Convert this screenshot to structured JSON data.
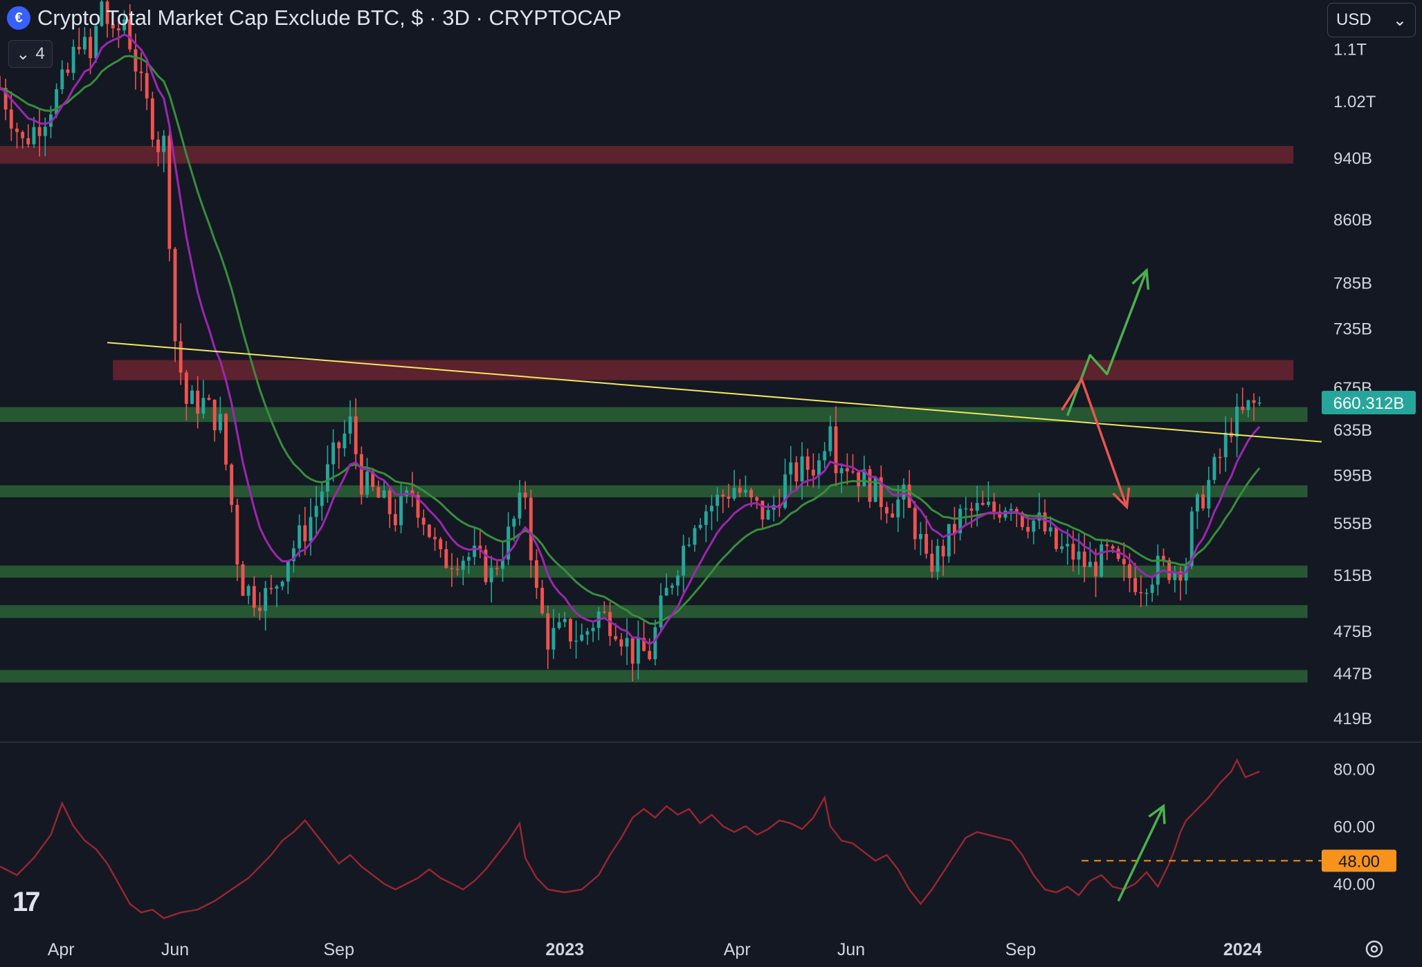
{
  "header": {
    "title": "Crypto Total Market Cap Exclude BTC, $ · 3D · CRYPTOCAP",
    "collapse_count": "4",
    "currency": "USD",
    "logo_icon": "cryptocap-logo-icon"
  },
  "colors": {
    "background": "#141823",
    "up": "#26a69a",
    "down": "#ef5350",
    "ema_fast": "#9c27b0",
    "ema_slow": "#388e3c",
    "trendline": "#f2e85c",
    "support_zone": "#2e6b3a",
    "resistance_zone": "#7a2733",
    "rsi": "#9b2630",
    "arrow_up": "#4caf50",
    "arrow_down": "#ef5350",
    "last_price_bg": "#26a69a",
    "rsi_level_bg": "#f7931a"
  },
  "chart_data": {
    "type": "candlestick",
    "title": "Crypto Total Market Cap Exclude BTC, $ · 3D · CRYPTOCAP",
    "price_axis": {
      "scale": "log",
      "ticks": [
        "1.1T",
        "1.02T",
        "940B",
        "860B",
        "785B",
        "735B",
        "675B",
        "635B",
        "595B",
        "555B",
        "515B",
        "475B",
        "447B",
        "419B"
      ],
      "tick_values": [
        1100,
        1020,
        940,
        860,
        785,
        735,
        675,
        635,
        595,
        555,
        515,
        475,
        447,
        419
      ],
      "range": [
        405,
        1180
      ]
    },
    "time_axis": {
      "ticks": [
        "Apr",
        "Jun",
        "Sep",
        "2023",
        "Apr",
        "Jun",
        "Sep",
        "2024"
      ],
      "bold": [
        false,
        false,
        false,
        true,
        false,
        false,
        false,
        true
      ],
      "tick_times": [
        0.08,
        2.1,
        5.0,
        9.0,
        12.05,
        14.07,
        17.07,
        21.0
      ],
      "range": [
        -1.0,
        22.4
      ],
      "unit": "months since Jan 2022"
    },
    "last_price": "660.312B",
    "last_price_value": 660.312,
    "resistance_zones": [
      [
        932,
        956
      ],
      [
        682,
        702
      ]
    ],
    "support_zones": [
      [
        642,
        656
      ],
      [
        576,
        586
      ],
      [
        513,
        522
      ],
      [
        484,
        493
      ],
      [
        441,
        449
      ]
    ],
    "trendline": {
      "from": [
        0.9,
        720
      ],
      "to": [
        22.4,
        624
      ]
    },
    "scenario_up": [
      [
        17.9,
        648
      ],
      [
        18.3,
        707
      ],
      [
        18.6,
        688
      ],
      [
        19.3,
        799
      ]
    ],
    "scenario_down": [
      [
        17.8,
        653
      ],
      [
        18.15,
        683
      ],
      [
        18.95,
        568
      ]
    ],
    "price_path": [
      [
        -1.0,
        1040
      ],
      [
        -0.6,
        960
      ],
      [
        -0.2,
        1000
      ],
      [
        0.2,
        1060
      ],
      [
        0.4,
        1120
      ],
      [
        0.6,
        1080
      ],
      [
        0.8,
        1180
      ],
      [
        1.0,
        1110
      ],
      [
        1.2,
        1150
      ],
      [
        1.5,
        1040
      ],
      [
        1.8,
        960
      ],
      [
        1.95,
        960
      ],
      [
        2.05,
        740
      ],
      [
        2.3,
        660
      ],
      [
        2.6,
        660
      ],
      [
        2.9,
        640
      ],
      [
        3.1,
        570
      ],
      [
        3.25,
        510
      ],
      [
        3.5,
        500
      ],
      [
        3.8,
        500
      ],
      [
        4.1,
        530
      ],
      [
        4.4,
        550
      ],
      [
        4.6,
        570
      ],
      [
        4.9,
        610
      ],
      [
        5.2,
        640
      ],
      [
        5.4,
        590
      ],
      [
        5.7,
        575
      ],
      [
        6.0,
        560
      ],
      [
        6.3,
        580
      ],
      [
        6.5,
        560
      ],
      [
        6.8,
        525
      ],
      [
        7.1,
        530
      ],
      [
        7.4,
        528
      ],
      [
        7.7,
        515
      ],
      [
        8.0,
        545
      ],
      [
        8.3,
        580
      ],
      [
        8.4,
        535
      ],
      [
        8.5,
        500
      ],
      [
        8.7,
        470
      ],
      [
        9.0,
        475
      ],
      [
        9.3,
        470
      ],
      [
        9.6,
        487
      ],
      [
        9.9,
        480
      ],
      [
        10.2,
        460
      ],
      [
        10.5,
        460
      ],
      [
        10.7,
        490
      ],
      [
        11.0,
        525
      ],
      [
        11.3,
        560
      ],
      [
        11.6,
        570
      ],
      [
        12.0,
        585
      ],
      [
        12.3,
        570
      ],
      [
        12.6,
        560
      ],
      [
        12.9,
        590
      ],
      [
        13.2,
        600
      ],
      [
        13.5,
        605
      ],
      [
        13.7,
        650
      ],
      [
        13.8,
        610
      ],
      [
        14.0,
        605
      ],
      [
        14.3,
        590
      ],
      [
        14.6,
        575
      ],
      [
        14.8,
        570
      ],
      [
        15.0,
        575
      ],
      [
        15.3,
        540
      ],
      [
        15.4,
        520
      ],
      [
        15.7,
        535
      ],
      [
        16.0,
        560
      ],
      [
        16.3,
        565
      ],
      [
        16.6,
        565
      ],
      [
        16.9,
        575
      ],
      [
        17.1,
        560
      ],
      [
        17.4,
        555
      ],
      [
        17.7,
        535
      ],
      [
        18.0,
        530
      ],
      [
        18.3,
        520
      ],
      [
        18.6,
        530
      ],
      [
        18.9,
        515
      ],
      [
        19.2,
        510
      ],
      [
        19.5,
        520
      ],
      [
        19.8,
        520
      ],
      [
        20.0,
        525
      ],
      [
        20.1,
        555
      ],
      [
        20.3,
        578
      ],
      [
        20.6,
        610
      ],
      [
        20.8,
        640
      ],
      [
        21.0,
        648
      ],
      [
        21.1,
        655
      ],
      [
        21.3,
        660.312
      ]
    ],
    "rsi": {
      "levels": [
        "80.00",
        "60.00",
        "40.00"
      ],
      "level_values": [
        80,
        60,
        40
      ],
      "range": [
        25,
        88
      ],
      "current_marker": "48.00",
      "current_marker_value": 48,
      "marker_from": 18.15,
      "arrow": [
        [
          18.8,
          34
        ],
        [
          19.6,
          67
        ]
      ],
      "values": [
        [
          -1.0,
          46
        ],
        [
          -0.7,
          43
        ],
        [
          -0.4,
          49
        ],
        [
          -0.1,
          57
        ],
        [
          0.1,
          68
        ],
        [
          0.3,
          60
        ],
        [
          0.5,
          55
        ],
        [
          0.7,
          52
        ],
        [
          0.9,
          47
        ],
        [
          1.1,
          40
        ],
        [
          1.3,
          33
        ],
        [
          1.5,
          30
        ],
        [
          1.7,
          31
        ],
        [
          1.9,
          28
        ],
        [
          2.2,
          30
        ],
        [
          2.5,
          31
        ],
        [
          2.8,
          34
        ],
        [
          3.1,
          38
        ],
        [
          3.4,
          42
        ],
        [
          3.6,
          46
        ],
        [
          3.8,
          50
        ],
        [
          4.0,
          55
        ],
        [
          4.2,
          58
        ],
        [
          4.4,
          62
        ],
        [
          4.6,
          57
        ],
        [
          4.8,
          52
        ],
        [
          5.0,
          47
        ],
        [
          5.2,
          50
        ],
        [
          5.4,
          46
        ],
        [
          5.6,
          43
        ],
        [
          5.8,
          40
        ],
        [
          6.0,
          38
        ],
        [
          6.2,
          40
        ],
        [
          6.4,
          42
        ],
        [
          6.6,
          45
        ],
        [
          6.8,
          42
        ],
        [
          7.0,
          40
        ],
        [
          7.2,
          38
        ],
        [
          7.4,
          41
        ],
        [
          7.6,
          45
        ],
        [
          7.8,
          50
        ],
        [
          8.0,
          55
        ],
        [
          8.2,
          61
        ],
        [
          8.3,
          49
        ],
        [
          8.5,
          42
        ],
        [
          8.7,
          38
        ],
        [
          9.0,
          37
        ],
        [
          9.3,
          38
        ],
        [
          9.6,
          43
        ],
        [
          9.8,
          50
        ],
        [
          10.0,
          56
        ],
        [
          10.2,
          63
        ],
        [
          10.4,
          66
        ],
        [
          10.6,
          63
        ],
        [
          10.8,
          67
        ],
        [
          11.0,
          64
        ],
        [
          11.2,
          66
        ],
        [
          11.4,
          61
        ],
        [
          11.6,
          64
        ],
        [
          11.8,
          60
        ],
        [
          12.0,
          58
        ],
        [
          12.2,
          60
        ],
        [
          12.4,
          57
        ],
        [
          12.6,
          59
        ],
        [
          12.8,
          62
        ],
        [
          13.0,
          61
        ],
        [
          13.2,
          59
        ],
        [
          13.4,
          63
        ],
        [
          13.6,
          70
        ],
        [
          13.7,
          60
        ],
        [
          13.9,
          55
        ],
        [
          14.1,
          54
        ],
        [
          14.3,
          51
        ],
        [
          14.5,
          48
        ],
        [
          14.7,
          50
        ],
        [
          14.9,
          45
        ],
        [
          15.1,
          38
        ],
        [
          15.3,
          33
        ],
        [
          15.5,
          38
        ],
        [
          15.7,
          44
        ],
        [
          15.9,
          50
        ],
        [
          16.1,
          56
        ],
        [
          16.3,
          58
        ],
        [
          16.5,
          57
        ],
        [
          16.7,
          56
        ],
        [
          16.9,
          55
        ],
        [
          17.1,
          50
        ],
        [
          17.3,
          43
        ],
        [
          17.5,
          38
        ],
        [
          17.7,
          37
        ],
        [
          17.9,
          39
        ],
        [
          18.1,
          36
        ],
        [
          18.3,
          41
        ],
        [
          18.5,
          43
        ],
        [
          18.7,
          39
        ],
        [
          18.9,
          38
        ],
        [
          19.1,
          40
        ],
        [
          19.3,
          44
        ],
        [
          19.5,
          39
        ],
        [
          19.7,
          47
        ],
        [
          19.8,
          52
        ],
        [
          19.9,
          58
        ],
        [
          20.0,
          62
        ],
        [
          20.2,
          66
        ],
        [
          20.4,
          70
        ],
        [
          20.6,
          75
        ],
        [
          20.8,
          79
        ],
        [
          20.9,
          83
        ],
        [
          21.05,
          77
        ],
        [
          21.3,
          79
        ]
      ]
    }
  }
}
